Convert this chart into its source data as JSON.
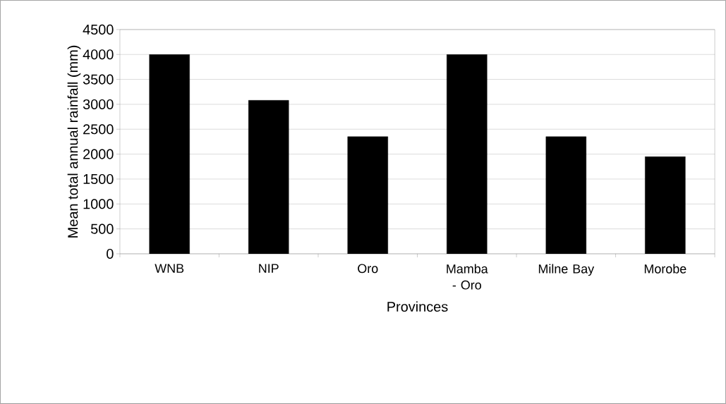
{
  "chart_data": {
    "type": "bar",
    "xlabel": "Provinces",
    "ylabel": "Mean total annual rainfall (mm)",
    "categories": [
      "WNB",
      "NIP",
      "Oro",
      "Mamba - Oro",
      "Milne Bay",
      "Morobe"
    ],
    "values": [
      4000,
      3080,
      2350,
      4000,
      2350,
      1950
    ],
    "color": "#000000",
    "ylim": [
      0,
      4500
    ],
    "yticks": [
      0,
      500,
      1000,
      1500,
      2000,
      2500,
      3000,
      3500,
      4000,
      4500
    ],
    "grid": "y"
  }
}
